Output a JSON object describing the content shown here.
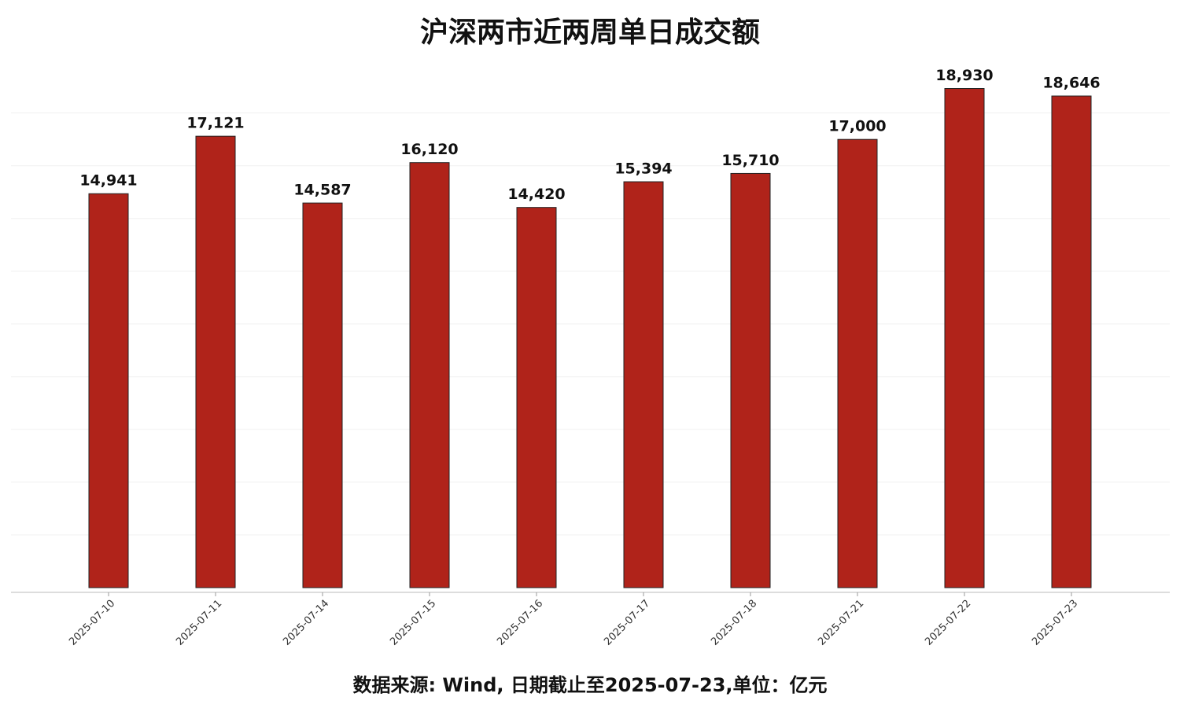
{
  "chart_data": {
    "type": "bar",
    "title": "沪深两市近两周单日成交额",
    "categories": [
      "2025-07-10",
      "2025-07-11",
      "2025-07-14",
      "2025-07-15",
      "2025-07-16",
      "2025-07-17",
      "2025-07-18",
      "2025-07-21",
      "2025-07-22",
      "2025-07-23"
    ],
    "values": [
      14941,
      17121,
      14587,
      16120,
      14420,
      15394,
      15710,
      17000,
      18930,
      18646
    ],
    "value_labels": [
      "14,941",
      "17,121",
      "14,587",
      "16,120",
      "14,420",
      "15,394",
      "15,710",
      "17,000",
      "18,930",
      "18,646"
    ],
    "color": "#b0231a",
    "ylim": [
      0,
      19900
    ],
    "yticks": [
      2000,
      4000,
      6000,
      8000,
      10000,
      12000,
      14000,
      16000,
      18000
    ],
    "grid": true,
    "source_note": "数据来源: Wind, 日期截止至2025-07-23,单位：亿元"
  }
}
